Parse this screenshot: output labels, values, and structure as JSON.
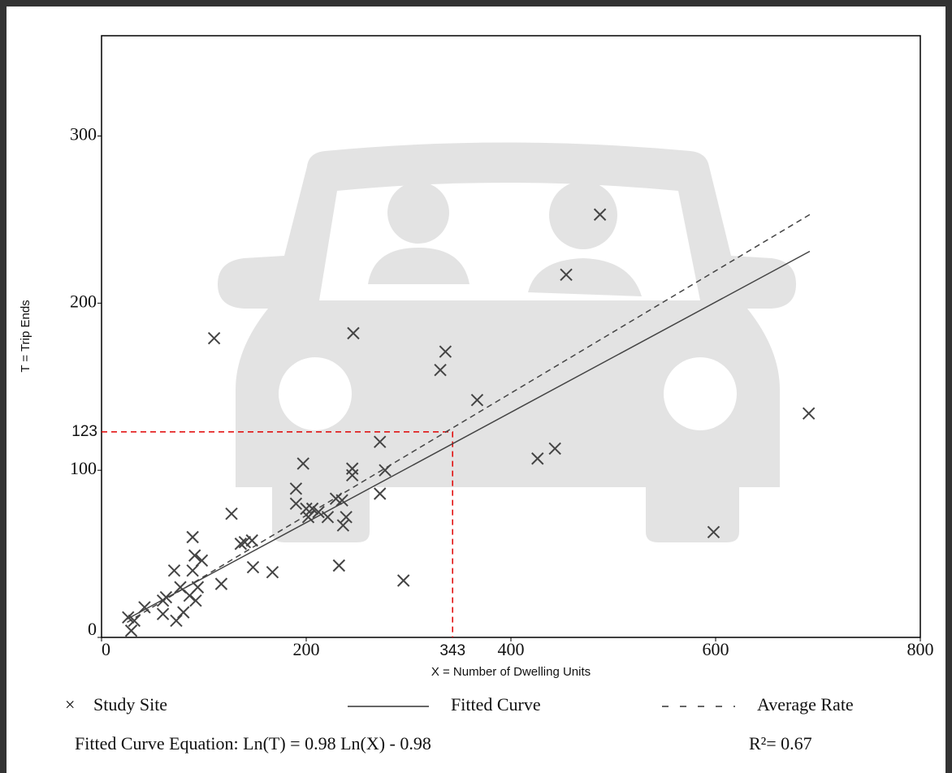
{
  "chart_data": {
    "type": "scatter",
    "x_label": "X = Number of Dwelling Units",
    "y_label": "T = Trip Ends",
    "xlim": [
      0,
      800
    ],
    "ylim": [
      0,
      360
    ],
    "xticks": [
      0,
      200,
      400,
      600,
      800
    ],
    "yticks": [
      0,
      100,
      200,
      300
    ],
    "series": [
      {
        "name": "Study Site",
        "color": "#444444",
        "marker": "x",
        "x": [
          26,
          32,
          42,
          29,
          60,
          63,
          60,
          71,
          73,
          77,
          80,
          86,
          89,
          89,
          91,
          92,
          94,
          98,
          117,
          110,
          127,
          136,
          140,
          147,
          148,
          167,
          190,
          190,
          197,
          200,
          202,
          206,
          212,
          221,
          229,
          235,
          232,
          236,
          239,
          245,
          245,
          246,
          272,
          272,
          277,
          295,
          331,
          336,
          367,
          426,
          443,
          454,
          487,
          598,
          691
        ],
        "values": [
          12,
          10,
          18,
          4,
          14,
          24,
          22,
          40,
          10,
          30,
          15,
          25,
          60,
          40,
          49,
          22,
          30,
          46,
          32,
          179,
          74,
          56,
          57,
          58,
          42,
          39,
          80,
          89,
          104,
          77,
          72,
          77,
          75,
          72,
          83,
          82,
          43,
          67,
          72,
          97,
          101,
          182,
          117,
          86,
          100,
          34,
          160,
          171,
          142,
          107,
          113,
          217,
          253,
          63,
          134
        ]
      },
      {
        "name": "Fitted Curve",
        "color": "#444444",
        "line_style": "solid",
        "x": [
          25,
          692
        ],
        "values": [
          11,
          231
        ]
      },
      {
        "name": "Average Rate",
        "color": "#444444",
        "line_style": "dashed",
        "x": [
          25,
          692
        ],
        "values": [
          9,
          253
        ]
      }
    ],
    "reference": {
      "x": 343,
      "y": 123,
      "color": "#e00000"
    },
    "equation": "Fitted Curve Equation: Ln(T) = 0.98 Ln(X) - 0.98",
    "r_squared": "R²= 0.67"
  }
}
